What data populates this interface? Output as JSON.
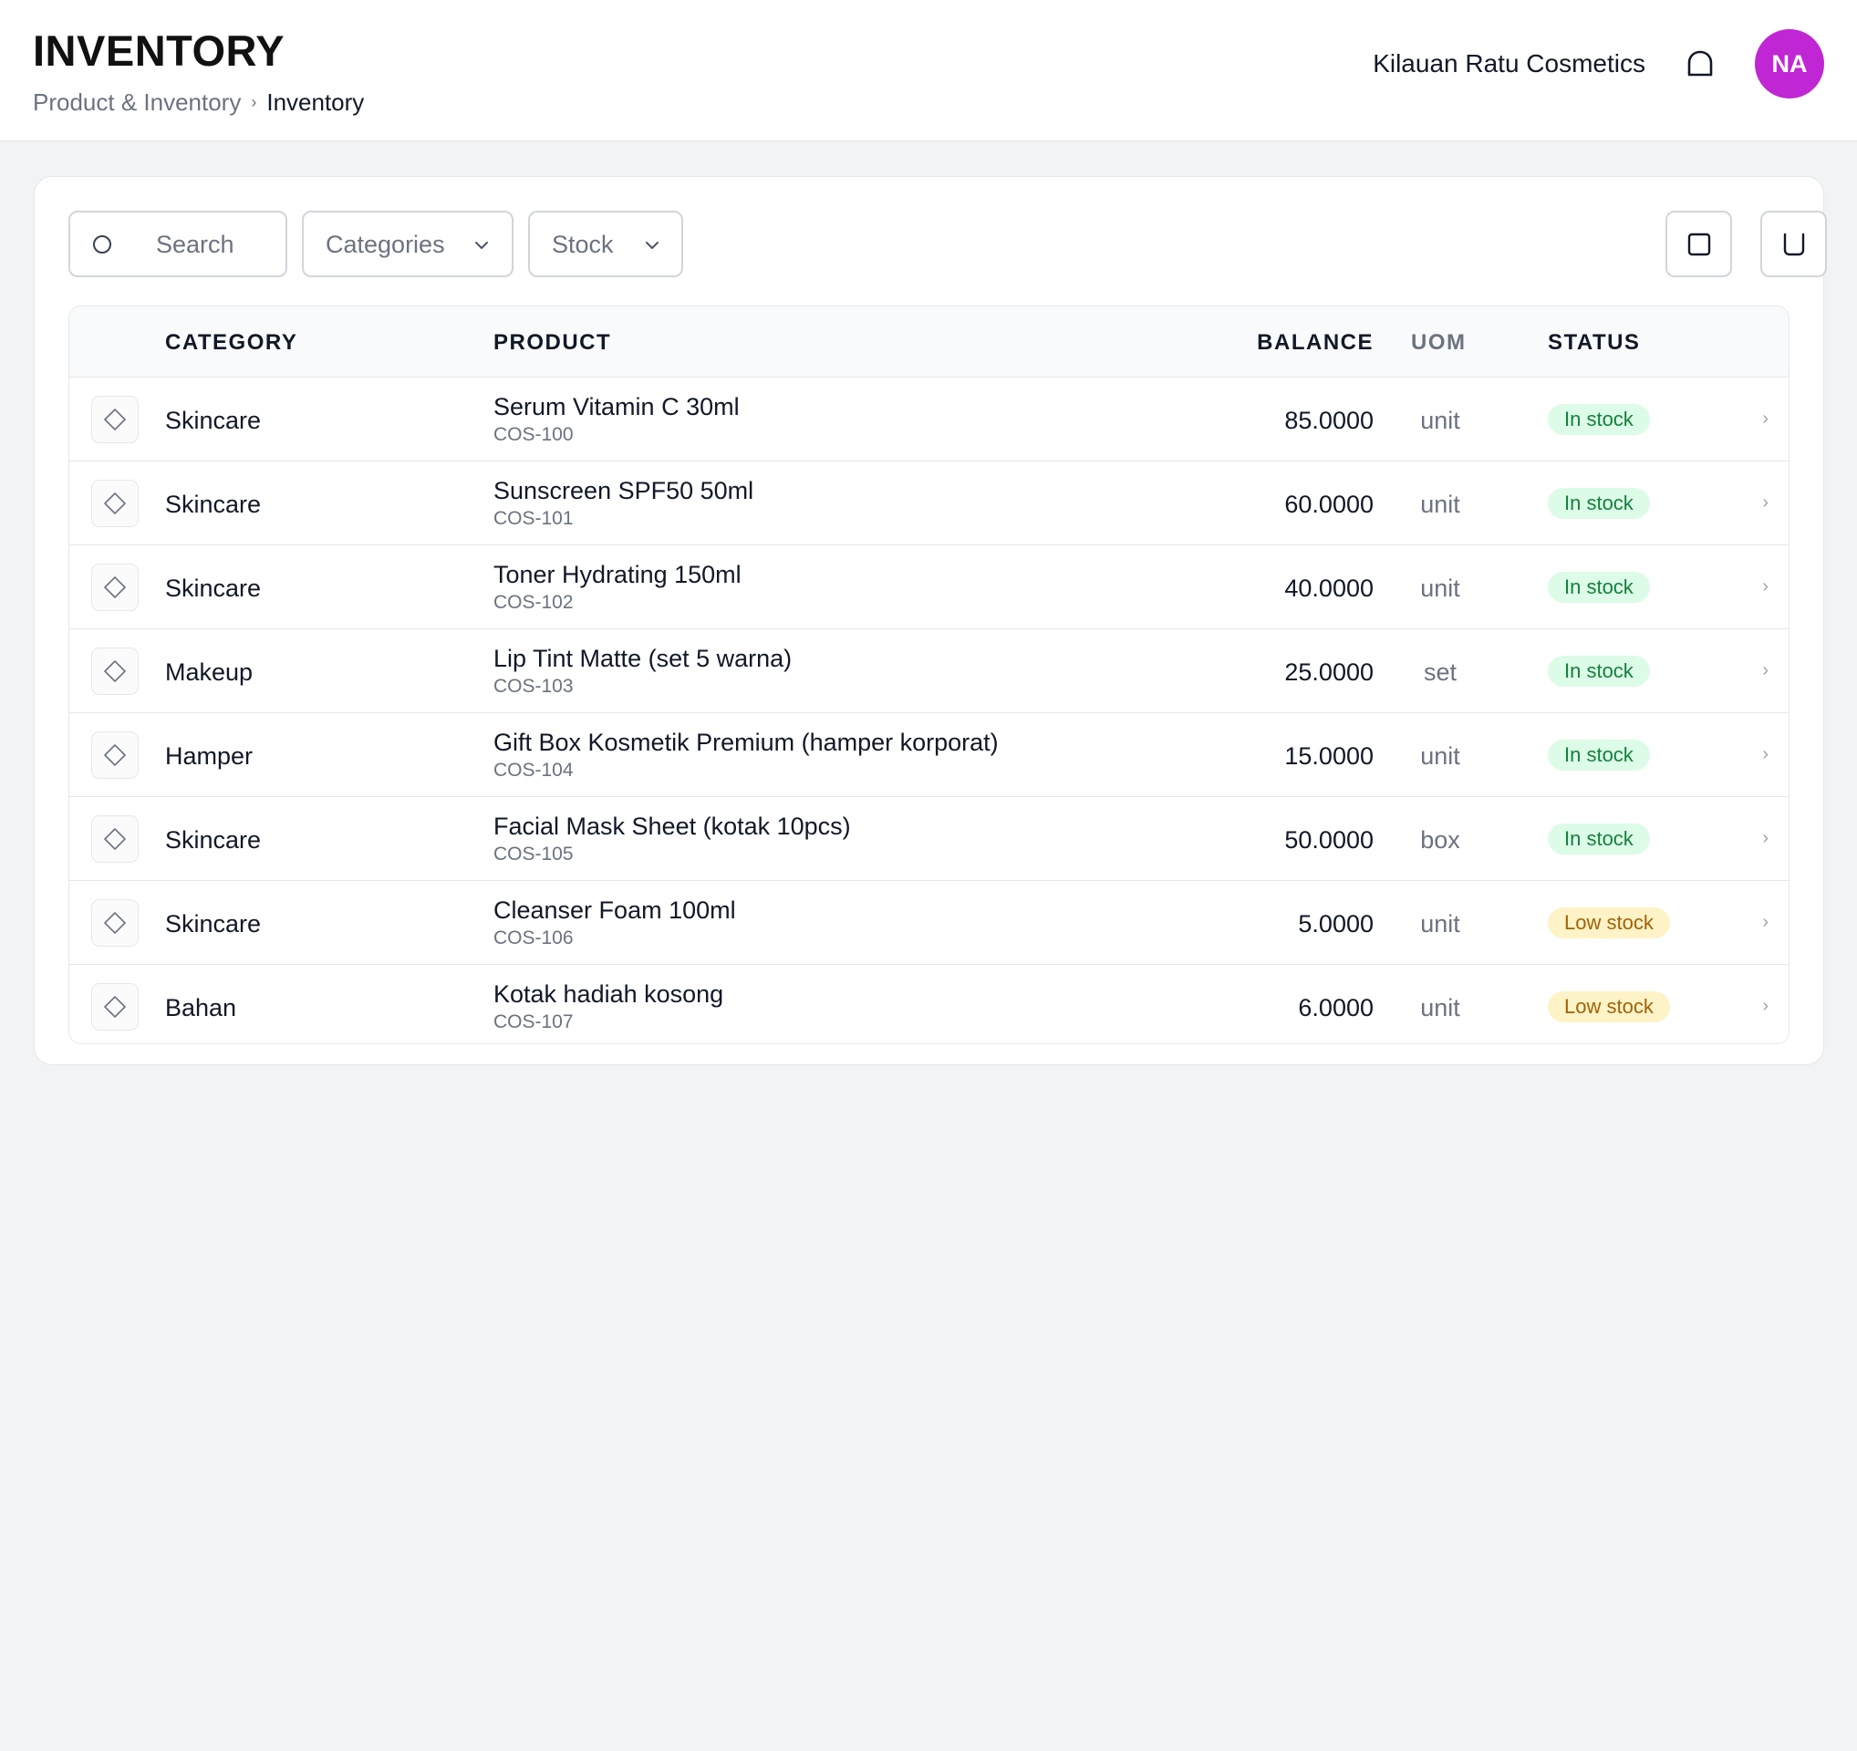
{
  "header": {
    "title": "INVENTORY",
    "breadcrumb": [
      {
        "label": "Product & Inventory"
      },
      {
        "label": "Inventory"
      }
    ],
    "breadcrumb_separator": "›",
    "company": "Kilauan Ratu Cosmetics",
    "avatar_initials": "NA",
    "avatar_color": "#c026d3",
    "notification_icon": "bell-icon"
  },
  "toolbar": {
    "search_placeholder": "Search",
    "categories_label": "Categories",
    "stock_label": "Stock",
    "action_icons": [
      "square-icon",
      "bucket-icon"
    ]
  },
  "table": {
    "columns": {
      "category": "CATEGORY",
      "product": "PRODUCT",
      "balance": "BALANCE",
      "uom": "UOM",
      "status": "STATUS"
    },
    "row_arrow": "›",
    "rows": [
      {
        "category": "Skincare",
        "product": "Serum Vitamin C 30ml",
        "sku": "COS-100",
        "balance": "85.0000",
        "uom": "unit",
        "status": "In stock",
        "status_type": "in"
      },
      {
        "category": "Skincare",
        "product": "Sunscreen SPF50 50ml",
        "sku": "COS-101",
        "balance": "60.0000",
        "uom": "unit",
        "status": "In stock",
        "status_type": "in"
      },
      {
        "category": "Skincare",
        "product": "Toner Hydrating 150ml",
        "sku": "COS-102",
        "balance": "40.0000",
        "uom": "unit",
        "status": "In stock",
        "status_type": "in"
      },
      {
        "category": "Makeup",
        "product": "Lip Tint Matte (set 5 warna)",
        "sku": "COS-103",
        "balance": "25.0000",
        "uom": "set",
        "status": "In stock",
        "status_type": "in"
      },
      {
        "category": "Hamper",
        "product": "Gift Box Kosmetik Premium (hamper korporat)",
        "sku": "COS-104",
        "balance": "15.0000",
        "uom": "unit",
        "status": "In stock",
        "status_type": "in"
      },
      {
        "category": "Skincare",
        "product": "Facial Mask Sheet (kotak 10pcs)",
        "sku": "COS-105",
        "balance": "50.0000",
        "uom": "box",
        "status": "In stock",
        "status_type": "in"
      },
      {
        "category": "Skincare",
        "product": "Cleanser Foam 100ml",
        "sku": "COS-106",
        "balance": "5.0000",
        "uom": "unit",
        "status": "Low stock",
        "status_type": "low"
      },
      {
        "category": "Bahan",
        "product": "Kotak hadiah kosong",
        "sku": "COS-107",
        "balance": "6.0000",
        "uom": "unit",
        "status": "Low stock",
        "status_type": "low"
      }
    ]
  },
  "colors": {
    "in_stock_bg": "#dcfce7",
    "in_stock_text": "#15803d",
    "low_stock_bg": "#fef3c7",
    "low_stock_text": "#a16207"
  }
}
